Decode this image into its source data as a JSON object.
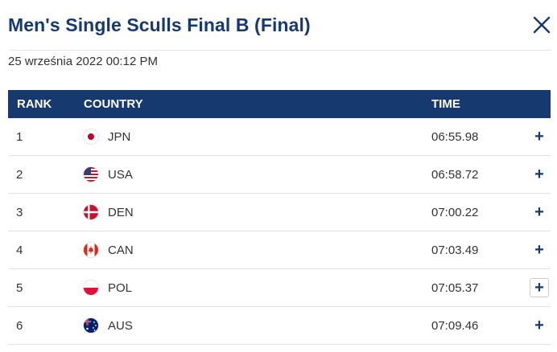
{
  "modal": {
    "title": "Men's Single Sculls Final B (Final)",
    "date": "25 września 2022 00:12 PM"
  },
  "table": {
    "headers": {
      "rank": "RANK",
      "country": "COUNTRY",
      "time": "TIME"
    },
    "rows": [
      {
        "rank": "1",
        "country": "JPN",
        "time": "06:55.98",
        "flag": "jpn-flag-icon"
      },
      {
        "rank": "2",
        "country": "USA",
        "time": "06:58.72",
        "flag": "usa-flag-icon"
      },
      {
        "rank": "3",
        "country": "DEN",
        "time": "07:00.22",
        "flag": "den-flag-icon"
      },
      {
        "rank": "4",
        "country": "CAN",
        "time": "07:03.49",
        "flag": "can-flag-icon"
      },
      {
        "rank": "5",
        "country": "POL",
        "time": "07:05.37",
        "flag": "pol-flag-icon"
      },
      {
        "rank": "6",
        "country": "AUS",
        "time": "07:09.46",
        "flag": "aus-flag-icon"
      }
    ],
    "expand_symbol": "+"
  },
  "colors": {
    "brand": "#163a70",
    "divider": "#dfe2e6"
  }
}
